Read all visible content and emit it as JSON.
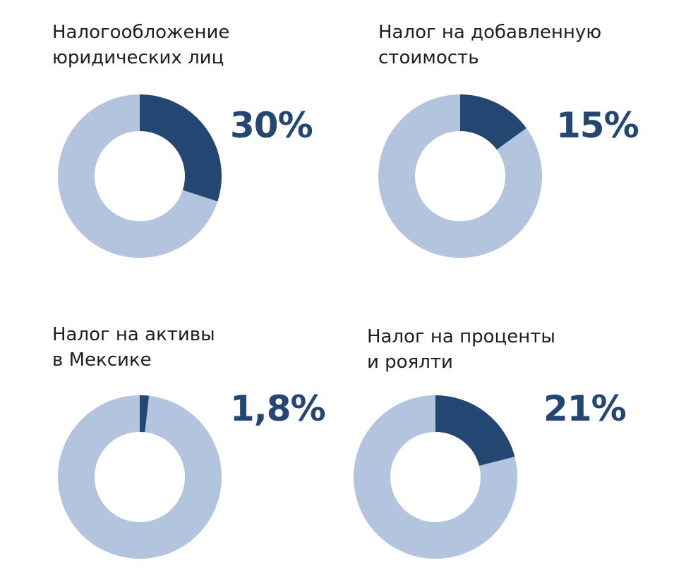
{
  "colors": {
    "highlight": "#234672",
    "remainder": "#b3c5de",
    "title_text": "#1e1e1e",
    "value_text": "#234672"
  },
  "chart_data": [
    {
      "type": "pie",
      "title_lines": [
        "Налогообложение",
        "юридических лиц"
      ],
      "value": 30,
      "value_label": "30%"
    },
    {
      "type": "pie",
      "title_lines": [
        "Налог на добавленную",
        "стоимость"
      ],
      "value": 15,
      "value_label": "15%"
    },
    {
      "type": "pie",
      "title_lines": [
        "Налог на активы",
        "в Мексике"
      ],
      "value": 1.8,
      "value_label": "1,8%"
    },
    {
      "type": "pie",
      "title_lines": [
        "Налог на проценты",
        "и роялти"
      ],
      "value": 21,
      "value_label": "21%"
    }
  ]
}
